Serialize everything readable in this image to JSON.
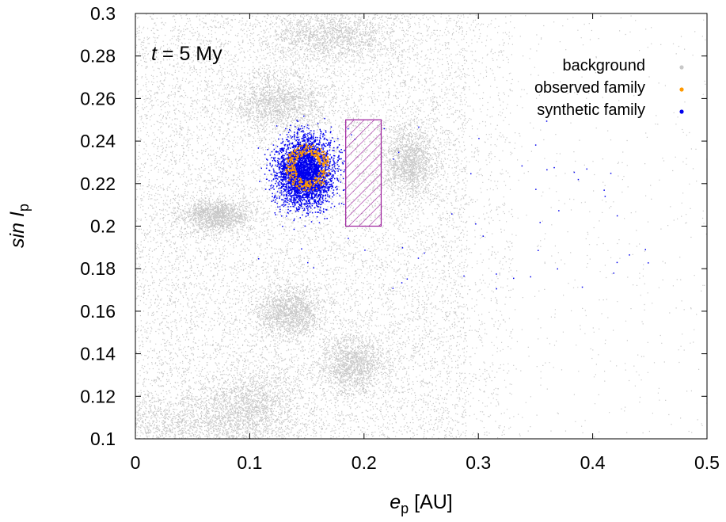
{
  "chart_data": {
    "type": "scatter",
    "xlabel": {
      "main": "e",
      "sub": "p",
      "unit": "[AU]"
    },
    "ylabel": {
      "main": "sin I",
      "sub": "p"
    },
    "xlim": [
      0,
      0.5
    ],
    "ylim": [
      0.1,
      0.3
    ],
    "x_ticks": [
      "0",
      "0.1",
      "0.2",
      "0.3",
      "0.4",
      "0.5"
    ],
    "y_ticks": [
      "0.1",
      "0.12",
      "0.14",
      "0.16",
      "0.18",
      "0.2",
      "0.22",
      "0.24",
      "0.26",
      "0.28",
      "0.3"
    ],
    "annotation": {
      "var": "t",
      "text": " = 5 My"
    },
    "legend_position": "top-right",
    "grid": false,
    "series": [
      {
        "name": "background",
        "color": "#c8c8c8"
      },
      {
        "name": "observed family",
        "color": "#ff9900"
      },
      {
        "name": "synthetic family",
        "color": "#0000ee"
      }
    ],
    "clusters": {
      "background": [
        {
          "x": 0.04,
          "y": 0.107,
          "sx": 0.04,
          "sy": 0.008
        },
        {
          "x": 0.1,
          "y": 0.115,
          "sx": 0.02,
          "sy": 0.01
        },
        {
          "x": 0.19,
          "y": 0.135,
          "sx": 0.015,
          "sy": 0.007
        },
        {
          "x": 0.135,
          "y": 0.16,
          "sx": 0.015,
          "sy": 0.006
        },
        {
          "x": 0.125,
          "y": 0.258,
          "sx": 0.022,
          "sy": 0.007
        },
        {
          "x": 0.24,
          "y": 0.23,
          "sx": 0.012,
          "sy": 0.008
        },
        {
          "x": 0.07,
          "y": 0.205,
          "sx": 0.015,
          "sy": 0.004
        },
        {
          "x": 0.17,
          "y": 0.29,
          "sx": 0.03,
          "sy": 0.006
        }
      ],
      "observed": {
        "x": 0.15,
        "y": 0.228,
        "sx": 0.018,
        "sy": 0.01
      },
      "synthetic": {
        "x": 0.148,
        "y": 0.226,
        "sx": 0.012,
        "sy": 0.008
      }
    },
    "box": {
      "x": [
        0.184,
        0.215
      ],
      "y": [
        0.2,
        0.25
      ],
      "color": "#9b1c9b"
    }
  }
}
